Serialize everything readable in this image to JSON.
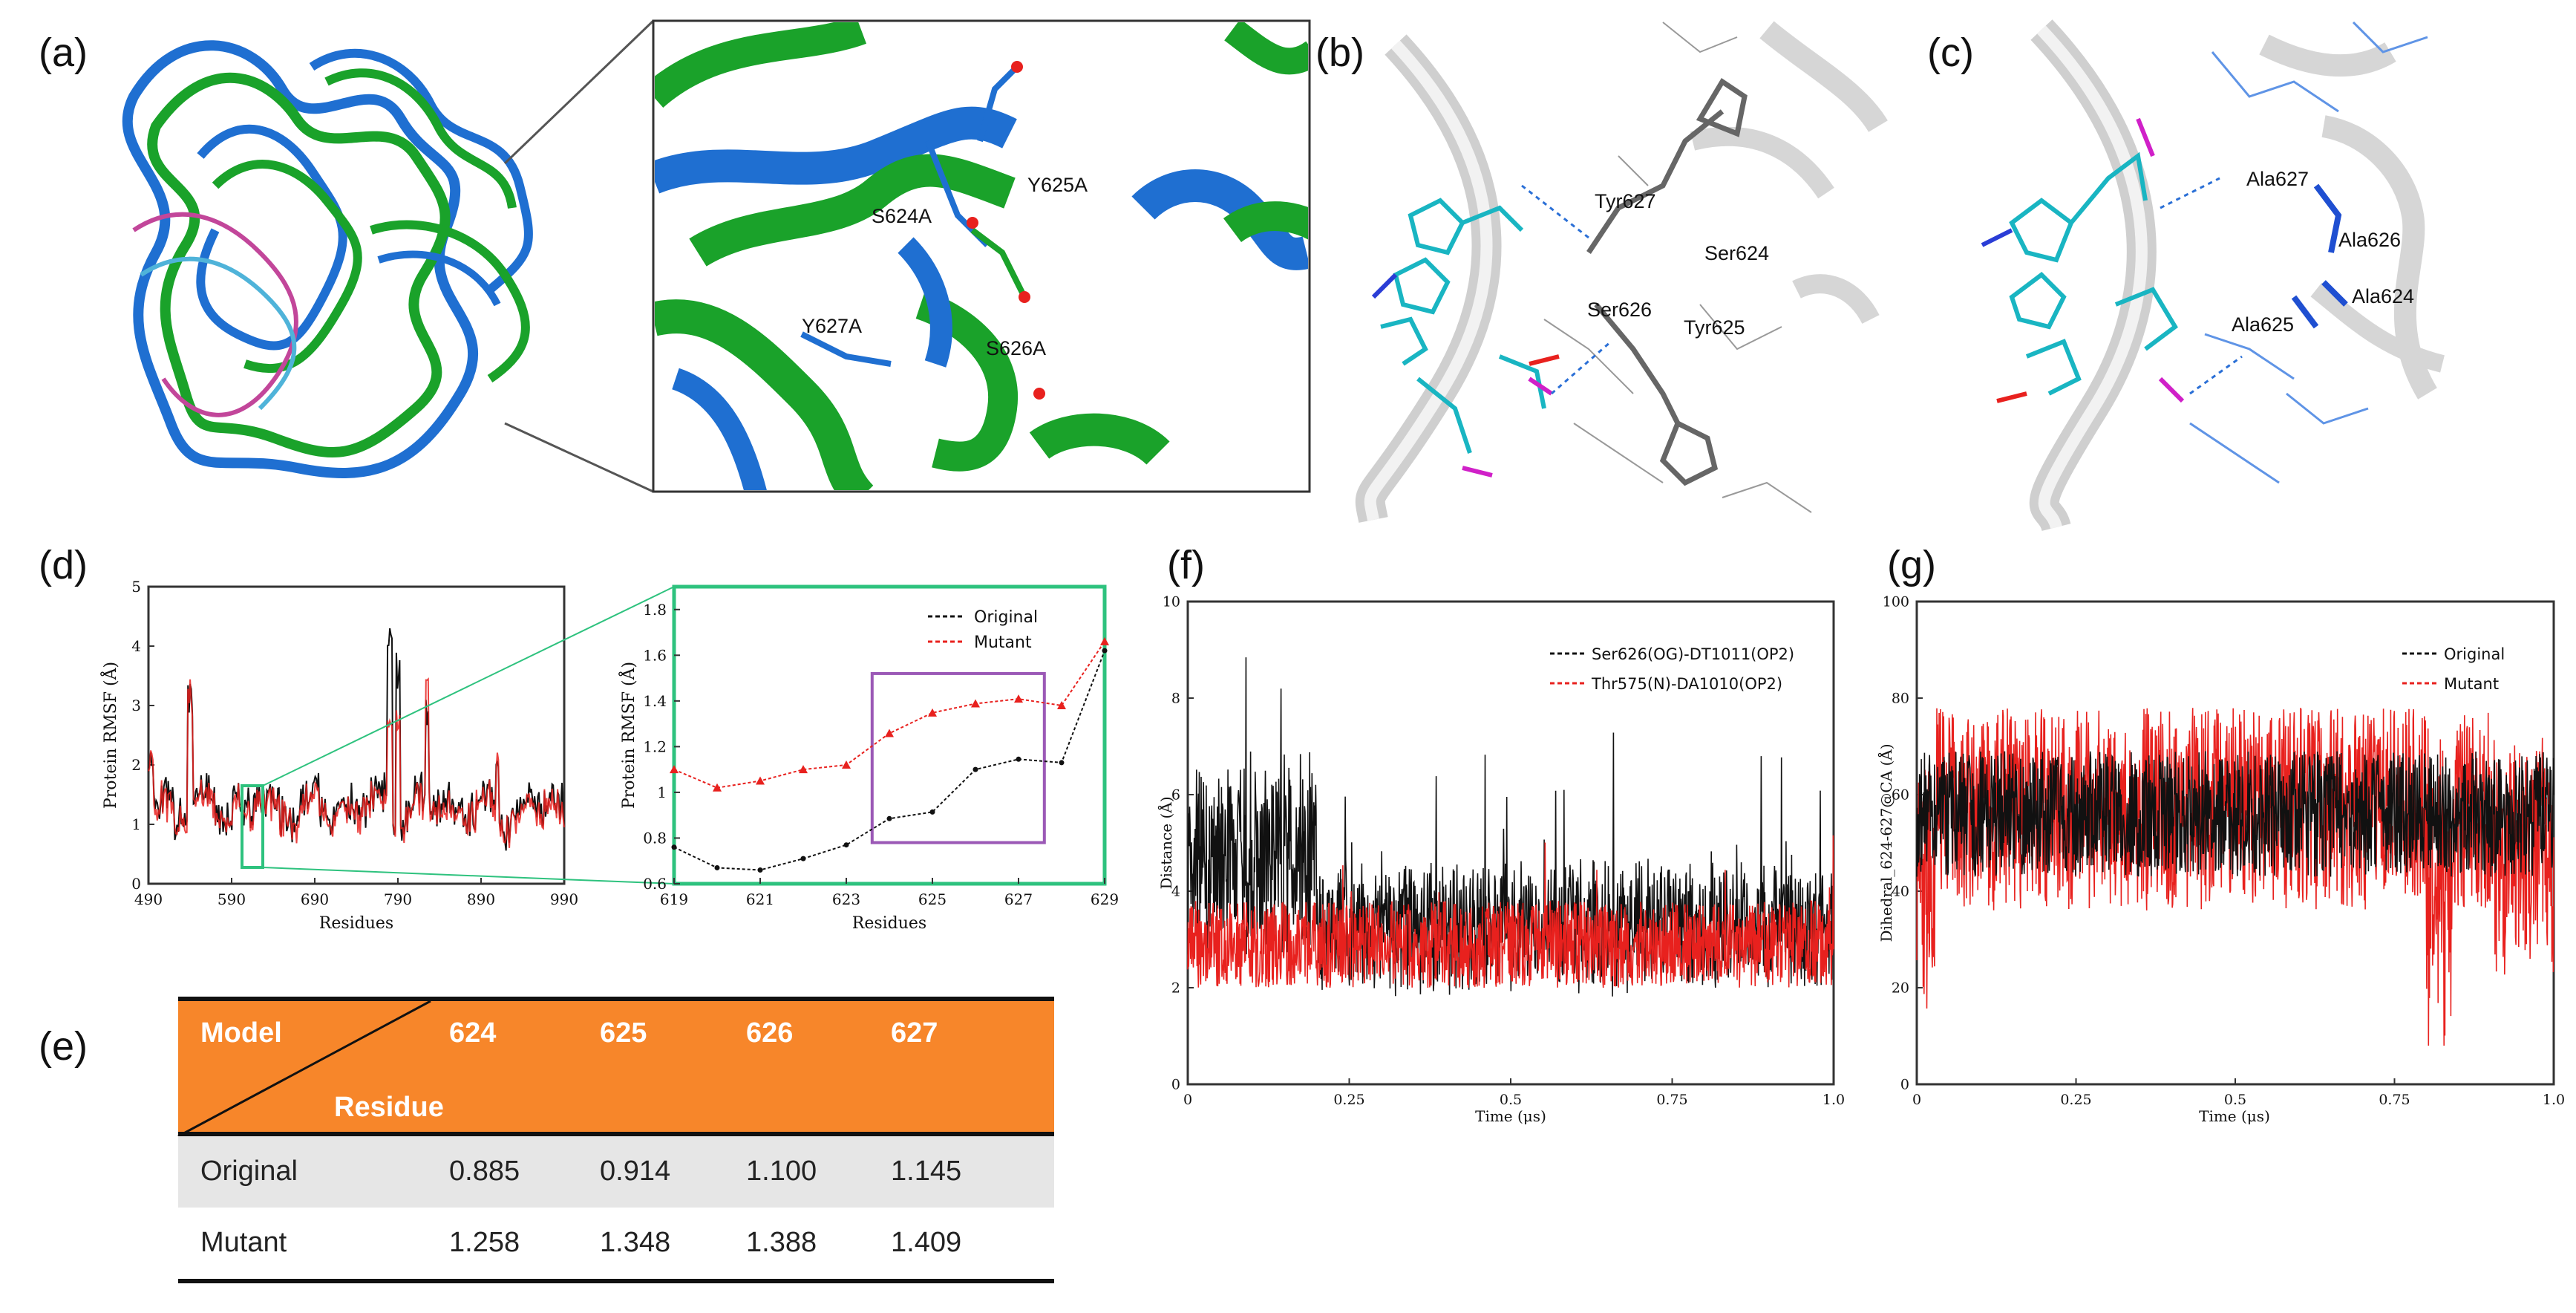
{
  "panels": {
    "a": "(a)",
    "b": "(b)",
    "c": "(c)",
    "d": "(d)",
    "e": "(e)",
    "f": "(f)",
    "g": "(g)"
  },
  "panel_a": {
    "labels": [
      "S624A",
      "Y625A",
      "Y627A",
      "S626A"
    ]
  },
  "panel_b": {
    "labels": [
      "Tyr627",
      "Ser624",
      "Ser626",
      "Tyr625"
    ]
  },
  "panel_c": {
    "labels": [
      "Ala627",
      "Ala626",
      "Ala624",
      "Ala625"
    ]
  },
  "colors": {
    "original": "#111111",
    "mutant": "#e8211e",
    "zoom_box": "#2ec27e",
    "highlight_box": "#9b59b6",
    "table_header": "#f7862a"
  },
  "chart_data": [
    {
      "id": "d-left",
      "type": "line",
      "xlabel": "Residues",
      "ylabel": "Protein RMSF (Å)",
      "x_ticks": [
        "490",
        "590",
        "690",
        "790",
        "890",
        "990"
      ],
      "y_ticks": [
        "0",
        "1",
        "2",
        "3",
        "4",
        "5"
      ],
      "ylim": [
        0,
        5
      ],
      "series": [
        {
          "color": "#111111"
        },
        {
          "color": "#e8211e"
        }
      ]
    },
    {
      "id": "d-right",
      "type": "line",
      "xlabel": "Residues",
      "ylabel": "Protein RMSF (Å)",
      "xlim": [
        619,
        629
      ],
      "ylim": [
        0.6,
        1.9
      ],
      "x_ticks": [
        "619",
        "621",
        "623",
        "625",
        "627",
        "629"
      ],
      "y_ticks": [
        "0.6",
        "0.8",
        "1",
        "1.2",
        "1.4",
        "1.6",
        "1.8"
      ],
      "legend": "top-right",
      "series": [
        {
          "name": "Original",
          "color": "#111111",
          "x": [
            619,
            620,
            621,
            622,
            623,
            624,
            625,
            626,
            627,
            628,
            629
          ],
          "y": [
            0.76,
            0.67,
            0.66,
            0.71,
            0.77,
            0.885,
            0.914,
            1.1,
            1.145,
            1.13,
            1.62
          ]
        },
        {
          "name": "Mutant",
          "color": "#e8211e",
          "x": [
            619,
            620,
            621,
            622,
            623,
            624,
            625,
            626,
            627,
            628,
            629
          ],
          "y": [
            1.1,
            1.02,
            1.05,
            1.1,
            1.12,
            1.258,
            1.348,
            1.388,
            1.409,
            1.38,
            1.66
          ]
        }
      ]
    },
    {
      "id": "f",
      "type": "line",
      "xlabel": "Time (μs)",
      "ylabel": "Distance (Å)",
      "xlim": [
        0,
        1
      ],
      "ylim": [
        0,
        10
      ],
      "x_ticks": [
        "0",
        "0.25",
        "0.5",
        "0.75",
        "1.0"
      ],
      "y_ticks": [
        "0",
        "2",
        "4",
        "6",
        "8",
        "10"
      ],
      "legend": "top-right",
      "series": [
        {
          "name": "Ser626(OG)-DT1011(OP2)",
          "color": "#111111"
        },
        {
          "name": "Thr575(N)-DA1010(OP2)",
          "color": "#e8211e"
        }
      ]
    },
    {
      "id": "g",
      "type": "line",
      "xlabel": "Time (μs)",
      "ylabel": "Dihedral_624-627@CA (Å)",
      "xlim": [
        0,
        1
      ],
      "ylim": [
        0,
        100
      ],
      "x_ticks": [
        "0",
        "0.25",
        "0.5",
        "0.75",
        "1.0"
      ],
      "y_ticks": [
        "0",
        "20",
        "40",
        "60",
        "80",
        "100"
      ],
      "legend": "top-right",
      "series": [
        {
          "name": "Original",
          "color": "#111111"
        },
        {
          "name": "Mutant",
          "color": "#e8211e"
        }
      ]
    },
    {
      "id": "e",
      "type": "table",
      "header_model": "Model",
      "header_residue": "Residue",
      "columns": [
        "624",
        "625",
        "626",
        "627"
      ],
      "rows": [
        {
          "label": "Original",
          "values": [
            "0.885",
            "0.914",
            "1.100",
            "1.145"
          ]
        },
        {
          "label": "Mutant",
          "values": [
            "1.258",
            "1.348",
            "1.388",
            "1.409"
          ]
        }
      ]
    }
  ]
}
